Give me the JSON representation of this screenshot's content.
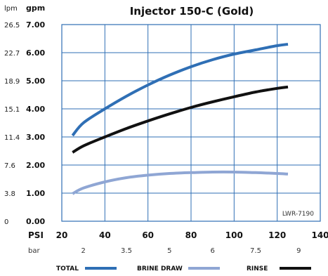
{
  "chart_data": {
    "type": "line",
    "title": "Injector 150-C (Gold)",
    "note": "LWR-7190",
    "y_units": {
      "left": "lpm",
      "right": "gpm"
    },
    "x_unit_primary": "PSI",
    "x_unit_secondary": "bar",
    "x_ticks": [
      "20",
      "40",
      "60",
      "80",
      "100",
      "120",
      "140"
    ],
    "x_ticks_values": [
      20,
      40,
      60,
      80,
      100,
      120,
      140
    ],
    "bar_ticks": [
      {
        "label": "2",
        "psi": 30
      },
      {
        "label": "3.5",
        "psi": 50
      },
      {
        "label": "5",
        "psi": 70
      },
      {
        "label": "6",
        "psi": 90
      },
      {
        "label": "7.5",
        "psi": 110
      },
      {
        "label": "9",
        "psi": 130
      }
    ],
    "y_ticks_gpm": [
      "0.00",
      "1.00",
      "2.00",
      "3.00",
      "4.00",
      "5.00",
      "6.00",
      "7.00"
    ],
    "y_ticks_gpm_values": [
      0,
      1,
      2,
      3,
      4,
      5,
      6,
      7
    ],
    "y_ticks_lpm": [
      "0",
      "3.8",
      "7.6",
      "11.4",
      "15.1",
      "18.9",
      "22.7",
      "26.5"
    ],
    "xlim": [
      20,
      140
    ],
    "ylim": [
      0,
      7
    ],
    "grid": true,
    "legend_position": "bottom",
    "series": [
      {
        "name": "TOTAL",
        "color": "#2f6fb5",
        "x": [
          25,
          30,
          40,
          50,
          60,
          70,
          80,
          90,
          100,
          110,
          120,
          125
        ],
        "y": [
          3.05,
          3.5,
          4.0,
          4.45,
          4.85,
          5.2,
          5.5,
          5.75,
          5.95,
          6.1,
          6.25,
          6.3
        ]
      },
      {
        "name": "BRINE DRAW",
        "color": "#8fa6d4",
        "x": [
          25,
          30,
          40,
          50,
          60,
          70,
          80,
          90,
          100,
          110,
          120,
          125
        ],
        "y": [
          0.98,
          1.18,
          1.4,
          1.55,
          1.64,
          1.7,
          1.73,
          1.75,
          1.75,
          1.73,
          1.7,
          1.68
        ]
      },
      {
        "name": "RINSE",
        "color": "#111111",
        "x": [
          25,
          30,
          40,
          50,
          60,
          70,
          80,
          90,
          100,
          110,
          120,
          125
        ],
        "y": [
          2.45,
          2.68,
          3.0,
          3.3,
          3.57,
          3.82,
          4.05,
          4.25,
          4.43,
          4.6,
          4.73,
          4.78
        ]
      }
    ]
  }
}
